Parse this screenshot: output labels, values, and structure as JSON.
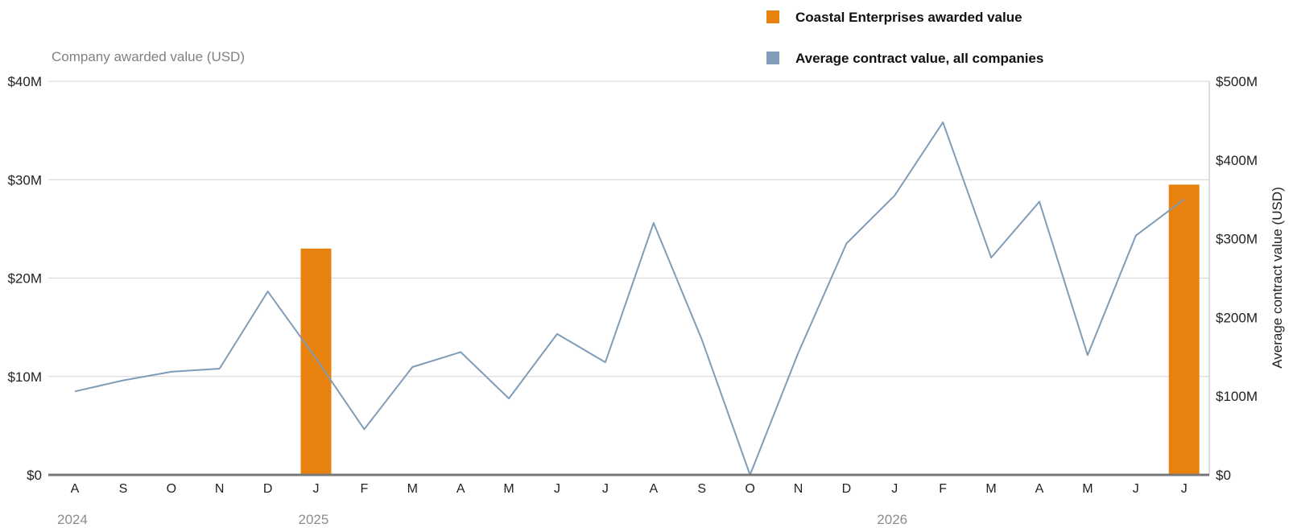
{
  "chart_data": {
    "type": "bar+line",
    "legend": [
      {
        "label": "Coastal Enterprises awarded value",
        "color": "#e8820f"
      },
      {
        "label": "Average contract value, all companies",
        "color": "#7f9db9"
      }
    ],
    "y_left": {
      "title": "Company awarded value (USD)",
      "range": [
        0,
        40000000
      ],
      "ticks": [
        "$0",
        "$10M",
        "$20M",
        "$30M",
        "$40M"
      ]
    },
    "y_right": {
      "title": "Average contract value (USD)",
      "range": [
        0,
        500000000
      ],
      "ticks": [
        "$0",
        "$100M",
        "$200M",
        "$300M",
        "$400M",
        "$500M"
      ]
    },
    "categories": [
      "A",
      "S",
      "O",
      "N",
      "D",
      "J",
      "F",
      "M",
      "A",
      "M",
      "J",
      "J",
      "A",
      "S",
      "O",
      "N",
      "D",
      "J",
      "F",
      "M",
      "A",
      "M",
      "J",
      "J"
    ],
    "x": [
      "2024-08",
      "2024-09",
      "2024-10",
      "2024-11",
      "2024-12",
      "2025-01",
      "2025-02",
      "2025-03",
      "2025-04",
      "2025-05",
      "2025-06",
      "2025-07",
      "2025-08",
      "2025-09",
      "2025-10",
      "2025-11",
      "2025-12",
      "2026-01",
      "2026-02",
      "2026-03",
      "2026-04",
      "2026-05",
      "2026-06",
      "2026-07"
    ],
    "year_labels": [
      {
        "label": "2024",
        "x": "2024-08"
      },
      {
        "label": "2025",
        "x": "2025-01"
      },
      {
        "label": "2026",
        "x": "2026-01"
      }
    ],
    "series": [
      {
        "name": "Coastal Enterprises awarded value",
        "type": "bar",
        "axis": "left",
        "color": "#e8820f",
        "values": [
          0,
          0,
          0,
          0,
          0,
          23000000,
          0,
          0,
          0,
          0,
          0,
          0,
          0,
          0,
          0,
          0,
          0,
          0,
          0,
          0,
          0,
          0,
          0,
          29500000
        ]
      },
      {
        "name": "Average contract value, all companies",
        "type": "line",
        "axis": "right",
        "color": "#7f9db9",
        "values": [
          106000000,
          120000000,
          131000000,
          135000000,
          233000000,
          148000000,
          58000000,
          137000000,
          156000000,
          97000000,
          179000000,
          143000000,
          320000000,
          172000000,
          0,
          155000000,
          294000000,
          355000000,
          448000000,
          276000000,
          347000000,
          152000000,
          304000000,
          350000000
        ]
      }
    ],
    "grid": true
  }
}
